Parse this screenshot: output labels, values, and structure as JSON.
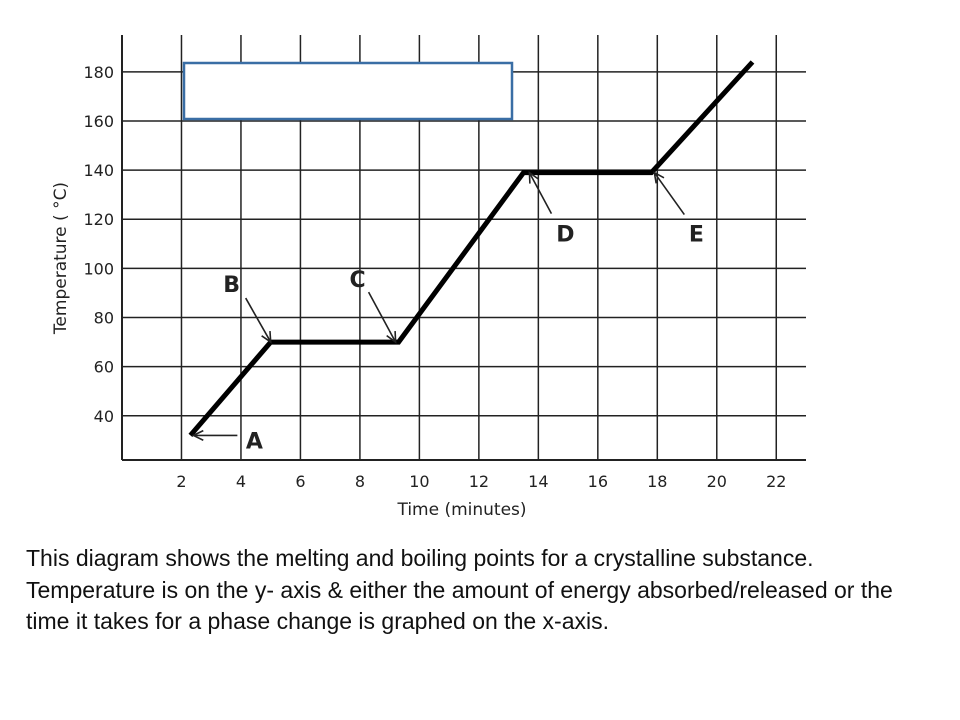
{
  "chart_data": {
    "type": "line",
    "x": [
      2.3,
      5.0,
      9.3,
      13.5,
      17.8,
      21.2
    ],
    "y": [
      32,
      70,
      70,
      139,
      139,
      184
    ],
    "xlabel": "Time (minutes)",
    "ylabel": "Temperature ( °C)",
    "xlim": [
      0,
      23
    ],
    "ylim": [
      22,
      195
    ],
    "x_ticks": [
      2,
      4,
      6,
      8,
      10,
      12,
      14,
      16,
      18,
      20,
      22
    ],
    "y_ticks": [
      40,
      60,
      80,
      100,
      120,
      140,
      160,
      180
    ],
    "grid": true,
    "line_color": "#000000",
    "box_color": "#3a6ea5",
    "annotations": [
      {
        "label": "A",
        "target": [
          2.4,
          32
        ]
      },
      {
        "label": "B",
        "target": [
          5.0,
          70
        ]
      },
      {
        "label": "C",
        "target": [
          9.2,
          70
        ]
      },
      {
        "label": "D",
        "target": [
          13.7,
          139
        ]
      },
      {
        "label": "E",
        "target": [
          17.9,
          139
        ]
      }
    ]
  },
  "caption": "This diagram shows the  melting and boiling points for a crystalline substance.  Temperature is on the y- axis & either the amount of energy absorbed/released  or the time it takes for  a phase change is graphed on the  x-axis."
}
